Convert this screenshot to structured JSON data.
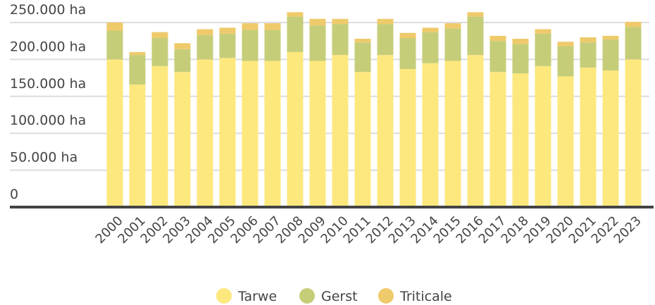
{
  "chart_data": {
    "type": "bar",
    "stacked": true,
    "categories": [
      "2000",
      "2001",
      "2002",
      "2003",
      "2004",
      "2005",
      "2006",
      "2007",
      "2008",
      "2009",
      "2010",
      "2011",
      "2012",
      "2013",
      "2014",
      "2015",
      "2016",
      "2017",
      "2018",
      "2019",
      "2020",
      "2021",
      "2022",
      "2023"
    ],
    "series": [
      {
        "name": "Tarwe",
        "color": "#fde87e",
        "values": [
          200000,
          166000,
          191000,
          183000,
          200000,
          202000,
          198000,
          198000,
          210000,
          198000,
          206000,
          183000,
          206000,
          187000,
          195000,
          198000,
          206000,
          183000,
          181000,
          191000,
          177000,
          189000,
          185000,
          200000
        ]
      },
      {
        "name": "Gerst",
        "color": "#c6cd79",
        "values": [
          39000,
          40000,
          38000,
          31000,
          33000,
          33000,
          42000,
          42000,
          48000,
          48000,
          42000,
          40000,
          42000,
          42000,
          42000,
          44000,
          52000,
          42000,
          40000,
          44000,
          41000,
          34000,
          42000,
          44000
        ]
      },
      {
        "name": "Triticale",
        "color": "#efca6b",
        "values": [
          11000,
          4000,
          8000,
          8000,
          8000,
          8000,
          9000,
          9000,
          6000,
          9000,
          7000,
          5000,
          7000,
          7000,
          6000,
          7000,
          6000,
          7000,
          7000,
          6000,
          6000,
          7000,
          5000,
          7000
        ]
      }
    ],
    "ylim": [
      0,
      270000
    ],
    "yticks": [
      0,
      {
        "value": 50000,
        "label": "50.000 ha"
      },
      {
        "value": 100000,
        "label": "100.000 ha"
      },
      {
        "value": 150000,
        "label": "150.000 ha"
      },
      {
        "value": 200000,
        "label": "200.000 ha"
      },
      {
        "value": 250000,
        "label": "250.000 ha"
      }
    ],
    "grid": true,
    "legend": "bottom"
  }
}
